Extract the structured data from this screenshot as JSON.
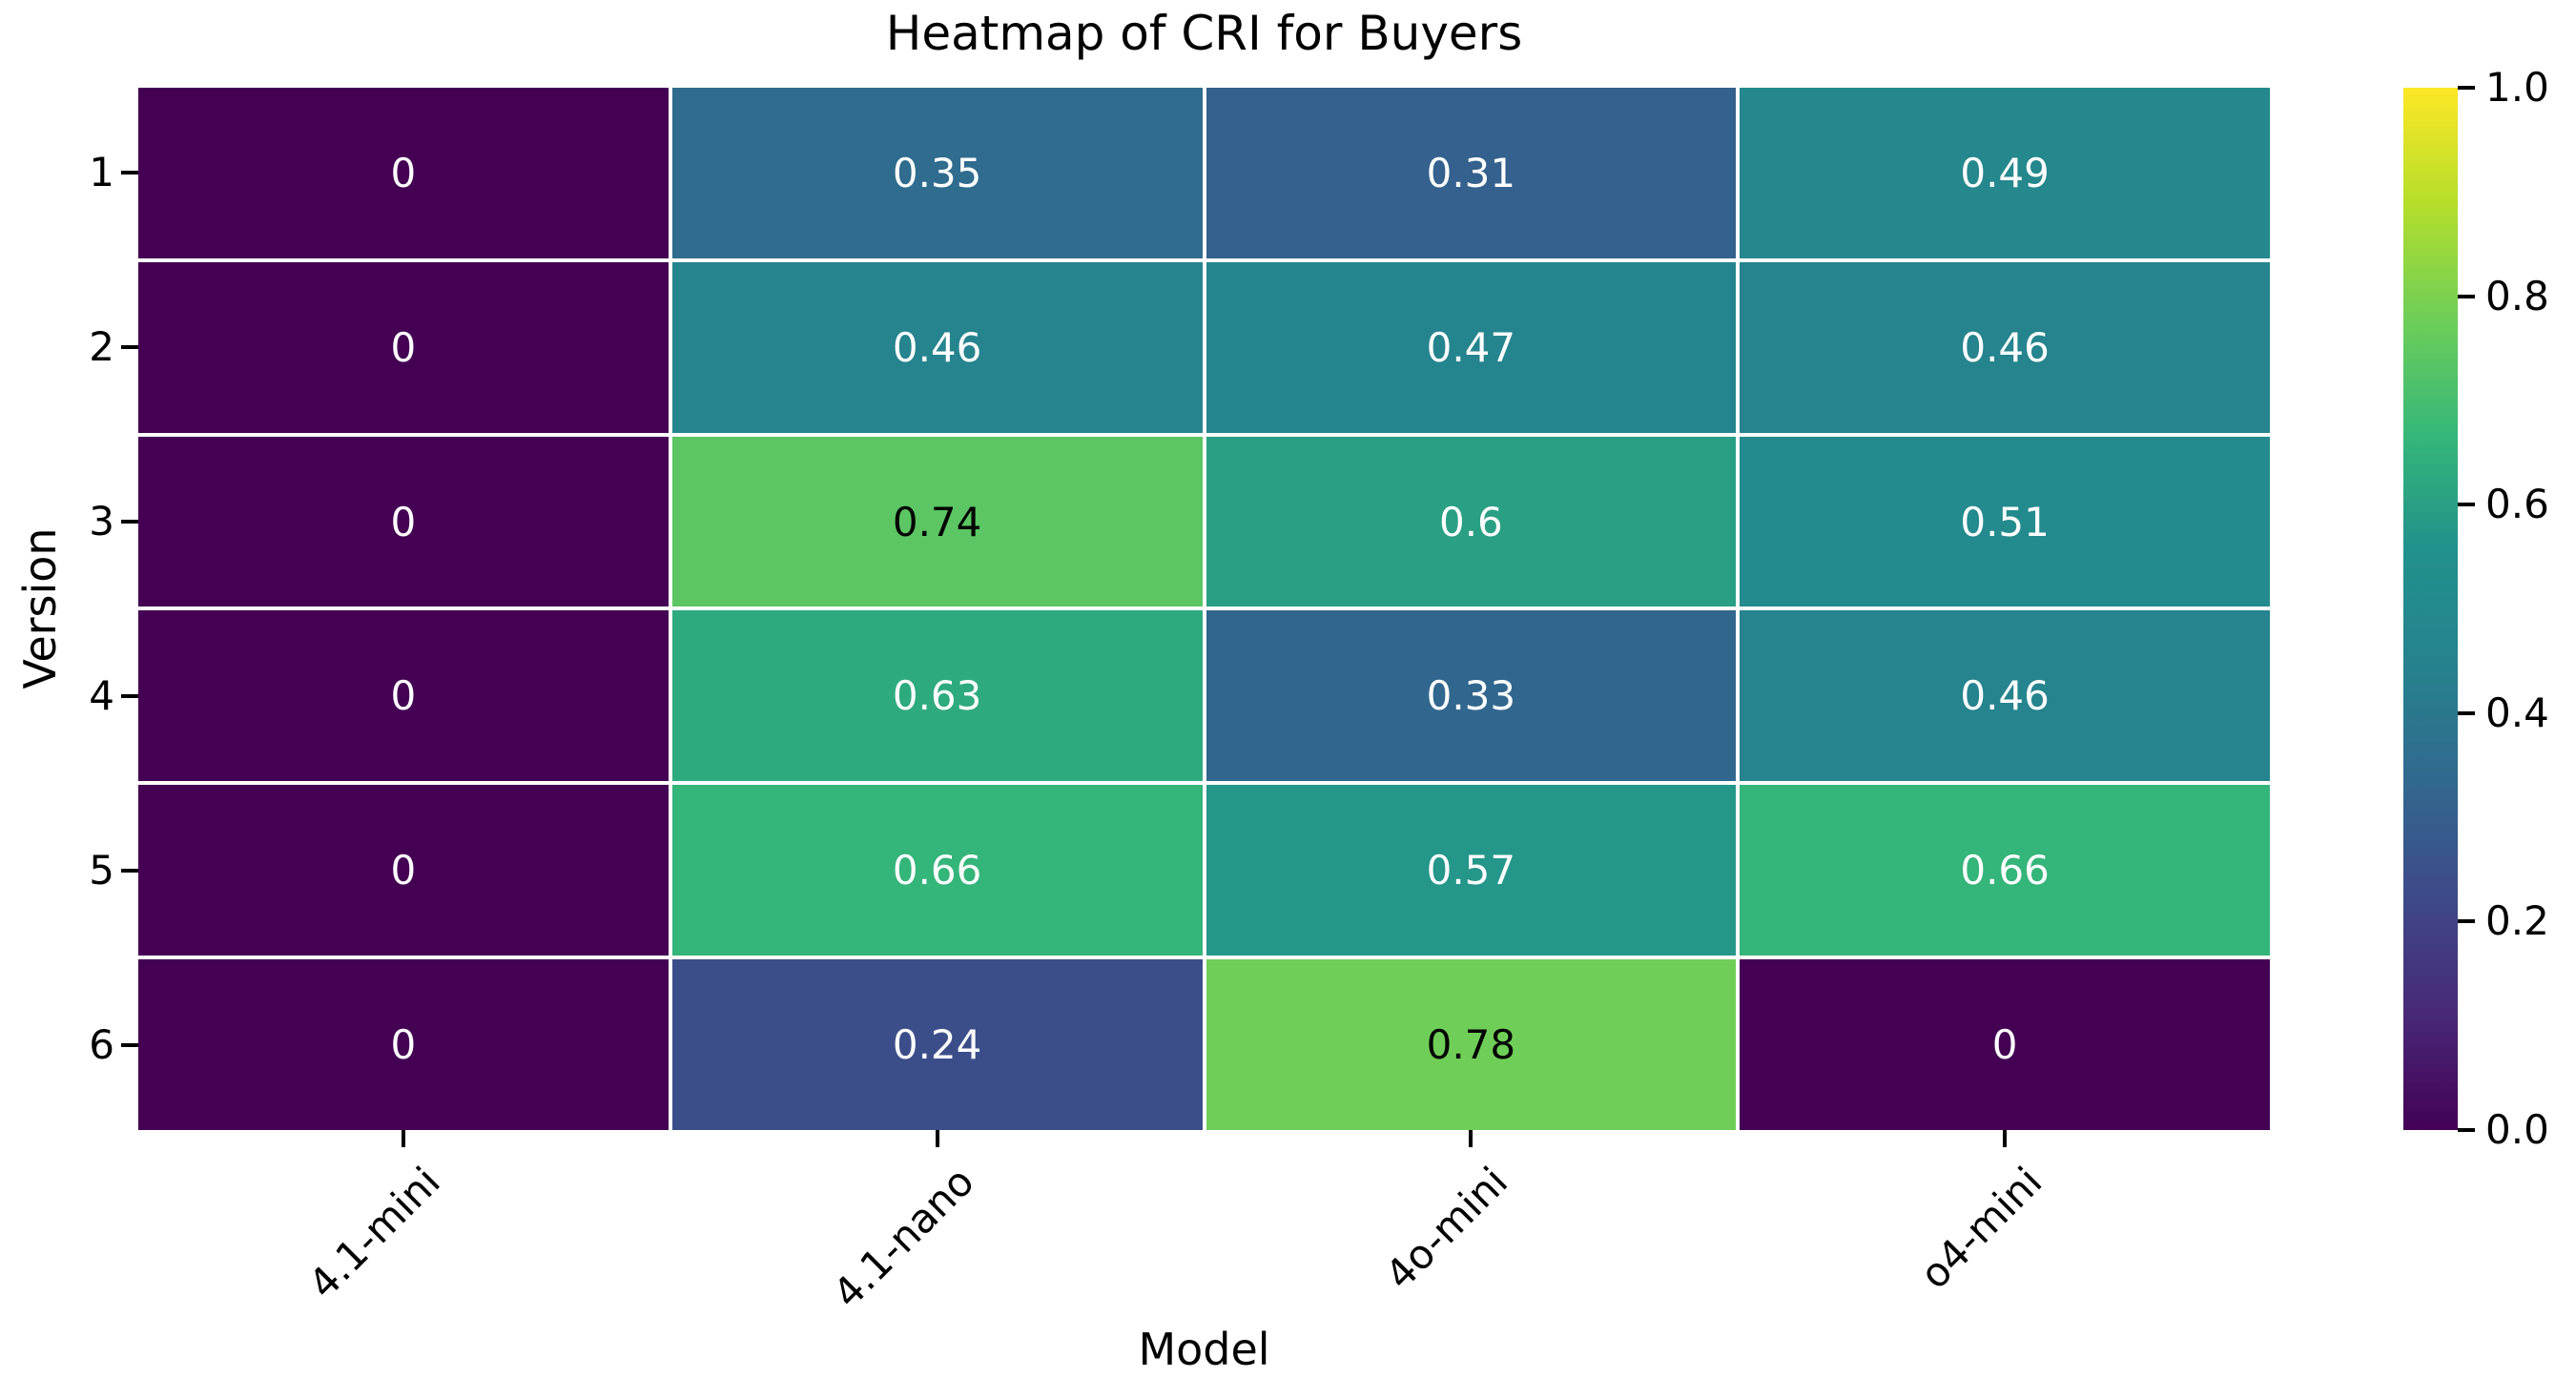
{
  "title": "Heatmap of CRI for Buyers",
  "chart_data": {
    "type": "heatmap",
    "title": "Heatmap of CRI for Buyers",
    "xlabel": "Model",
    "ylabel": "Version",
    "columns": [
      "4.1-mini",
      "4.1-nano",
      "4o-mini",
      "o4-mini"
    ],
    "rows": [
      "1",
      "2",
      "3",
      "4",
      "5",
      "6"
    ],
    "values": [
      [
        0,
        0.35,
        0.31,
        0.49
      ],
      [
        0,
        0.46,
        0.47,
        0.46
      ],
      [
        0,
        0.74,
        0.6,
        0.51
      ],
      [
        0,
        0.63,
        0.33,
        0.46
      ],
      [
        0,
        0.66,
        0.57,
        0.66
      ],
      [
        0,
        0.24,
        0.78,
        0
      ]
    ],
    "cell_labels": [
      [
        "0",
        "0.35",
        "0.31",
        "0.49"
      ],
      [
        "0",
        "0.46",
        "0.47",
        "0.46"
      ],
      [
        "0",
        "0.74",
        "0.6",
        "0.51"
      ],
      [
        "0",
        "0.63",
        "0.33",
        "0.46"
      ],
      [
        "0",
        "0.66",
        "0.57",
        "0.66"
      ],
      [
        "0",
        "0.24",
        "0.78",
        "0"
      ]
    ],
    "vmin": 0,
    "vmax": 1,
    "colormap": "viridis",
    "colormap_stops": [
      "#440154",
      "#482878",
      "#3e4989",
      "#31688e",
      "#26828e",
      "#21918c",
      "#35b779",
      "#6ece58",
      "#b5de2b",
      "#fde725"
    ],
    "colorbar_ticks": [
      {
        "label": "0.0",
        "value": 0.0
      },
      {
        "label": "0.2",
        "value": 0.2
      },
      {
        "label": "0.4",
        "value": 0.4
      },
      {
        "label": "0.6",
        "value": 0.6
      },
      {
        "label": "0.8",
        "value": 0.8
      },
      {
        "label": "1.0",
        "value": 1.0
      }
    ],
    "annotation_text_colors": {
      "dark": "#000000",
      "light": "#ffffff"
    },
    "grid_line_color": "#ffffff",
    "legend_position": "right",
    "grid": false
  }
}
